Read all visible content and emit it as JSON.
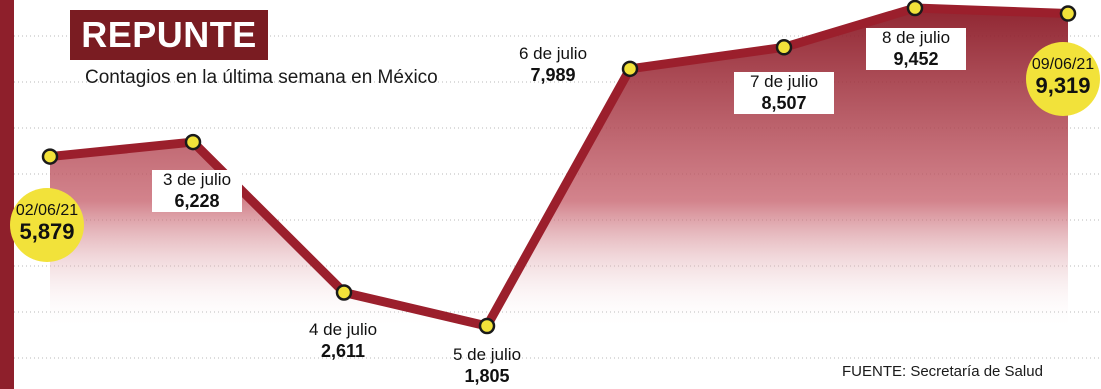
{
  "header": {
    "title": "REPUNTE",
    "subtitle": "Contagios en la última semana en México"
  },
  "source": "FUENTE: Secretaría de Salud",
  "colors": {
    "line": "#9b1f2c",
    "title_bg": "#7a1c22",
    "point": "#f2e23a",
    "bubble": "#f2e23a"
  },
  "chart_data": {
    "type": "line",
    "title": "REPUNTE",
    "subtitle": "Contagios en la última semana en México",
    "categories": [
      "02/06/21",
      "3 de julio",
      "4 de julio",
      "5 de julio",
      "6 de julio",
      "7 de julio",
      "8 de julio",
      "09/06/21"
    ],
    "value_labels": [
      "5,879",
      "6,228",
      "2,611",
      "1,805",
      "7,989",
      "8,507",
      "9,452",
      "9,319"
    ],
    "values": [
      5879,
      6228,
      2611,
      1805,
      7989,
      8507,
      9452,
      9319
    ],
    "ylim": [
      1805,
      9452
    ],
    "grid": false,
    "legend": "none"
  }
}
